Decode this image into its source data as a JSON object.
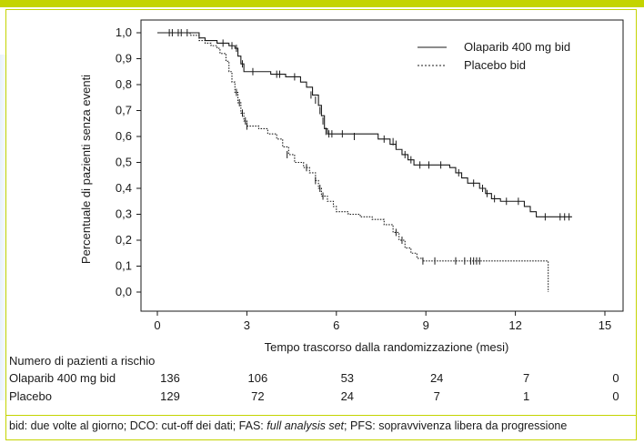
{
  "header_fragment": "",
  "chart_data": {
    "type": "line",
    "title": "",
    "xlabel": "Tempo trascorso dalla randomizzazione (mesi)",
    "ylabel": "Percentuale di pazienti senza eventi",
    "xlim": [
      0,
      15
    ],
    "ylim": [
      0,
      1
    ],
    "x_ticks": [
      "0",
      "3",
      "6",
      "9",
      "12",
      "15"
    ],
    "y_ticks": [
      "0,0",
      "0,1",
      "0,2",
      "0,3",
      "0,4",
      "0,5",
      "0,6",
      "0,7",
      "0,8",
      "0,9",
      "1,0"
    ],
    "legend_position": "top-right",
    "series": [
      {
        "name": "Olaparib 400 mg bid",
        "style": "solid",
        "color": "#1a1a1a",
        "steps": [
          [
            0,
            1.0
          ],
          [
            1.2,
            1.0
          ],
          [
            1.4,
            0.98
          ],
          [
            1.6,
            0.97
          ],
          [
            2.0,
            0.96
          ],
          [
            2.4,
            0.95
          ],
          [
            2.6,
            0.94
          ],
          [
            2.7,
            0.91
          ],
          [
            2.8,
            0.88
          ],
          [
            2.9,
            0.85
          ],
          [
            3.6,
            0.85
          ],
          [
            3.8,
            0.84
          ],
          [
            4.3,
            0.83
          ],
          [
            4.8,
            0.81
          ],
          [
            5.0,
            0.79
          ],
          [
            5.2,
            0.76
          ],
          [
            5.4,
            0.72
          ],
          [
            5.5,
            0.68
          ],
          [
            5.6,
            0.63
          ],
          [
            5.7,
            0.61
          ],
          [
            7.4,
            0.59
          ],
          [
            7.8,
            0.57
          ],
          [
            8.0,
            0.55
          ],
          [
            8.2,
            0.53
          ],
          [
            8.4,
            0.51
          ],
          [
            8.6,
            0.49
          ],
          [
            9.8,
            0.48
          ],
          [
            10.0,
            0.46
          ],
          [
            10.2,
            0.44
          ],
          [
            10.4,
            0.42
          ],
          [
            10.8,
            0.4
          ],
          [
            11.0,
            0.38
          ],
          [
            11.2,
            0.36
          ],
          [
            11.5,
            0.35
          ],
          [
            12.3,
            0.33
          ],
          [
            12.5,
            0.31
          ],
          [
            12.7,
            0.29
          ],
          [
            13.9,
            0.29
          ]
        ],
        "censored": [
          [
            0.4,
            1.0
          ],
          [
            0.7,
            1.0
          ],
          [
            1.0,
            1.0
          ],
          [
            2.2,
            0.96
          ],
          [
            2.5,
            0.95
          ],
          [
            2.65,
            0.94
          ],
          [
            2.85,
            0.88
          ],
          [
            3.2,
            0.85
          ],
          [
            4.0,
            0.84
          ],
          [
            4.1,
            0.84
          ],
          [
            4.6,
            0.83
          ],
          [
            5.15,
            0.76
          ],
          [
            5.3,
            0.74
          ],
          [
            5.45,
            0.7
          ],
          [
            5.55,
            0.66
          ],
          [
            5.65,
            0.62
          ],
          [
            5.75,
            0.61
          ],
          [
            5.85,
            0.61
          ],
          [
            6.2,
            0.61
          ],
          [
            6.6,
            0.6
          ],
          [
            7.6,
            0.59
          ],
          [
            7.9,
            0.58
          ],
          [
            8.0,
            0.57
          ],
          [
            8.3,
            0.53
          ],
          [
            8.5,
            0.51
          ],
          [
            8.8,
            0.49
          ],
          [
            9.1,
            0.49
          ],
          [
            9.5,
            0.49
          ],
          [
            10.1,
            0.46
          ],
          [
            10.6,
            0.42
          ],
          [
            10.9,
            0.4
          ],
          [
            11.05,
            0.38
          ],
          [
            11.3,
            0.36
          ],
          [
            11.7,
            0.35
          ],
          [
            12.1,
            0.35
          ],
          [
            13.0,
            0.29
          ],
          [
            13.5,
            0.29
          ],
          [
            13.65,
            0.29
          ],
          [
            13.8,
            0.29
          ]
        ]
      },
      {
        "name": "Placebo bid",
        "style": "dotted",
        "color": "#1a1a1a",
        "steps": [
          [
            0,
            1.0
          ],
          [
            1.1,
            0.99
          ],
          [
            1.4,
            0.97
          ],
          [
            1.6,
            0.96
          ],
          [
            1.8,
            0.95
          ],
          [
            2.0,
            0.94
          ],
          [
            2.1,
            0.92
          ],
          [
            2.3,
            0.89
          ],
          [
            2.4,
            0.85
          ],
          [
            2.5,
            0.81
          ],
          [
            2.6,
            0.77
          ],
          [
            2.7,
            0.73
          ],
          [
            2.8,
            0.69
          ],
          [
            2.9,
            0.66
          ],
          [
            3.0,
            0.64
          ],
          [
            3.4,
            0.63
          ],
          [
            3.7,
            0.61
          ],
          [
            4.0,
            0.59
          ],
          [
            4.2,
            0.56
          ],
          [
            4.4,
            0.53
          ],
          [
            4.6,
            0.5
          ],
          [
            4.9,
            0.48
          ],
          [
            5.1,
            0.46
          ],
          [
            5.3,
            0.43
          ],
          [
            5.4,
            0.4
          ],
          [
            5.5,
            0.37
          ],
          [
            5.7,
            0.35
          ],
          [
            5.9,
            0.33
          ],
          [
            6.0,
            0.31
          ],
          [
            6.4,
            0.3
          ],
          [
            6.8,
            0.29
          ],
          [
            7.2,
            0.28
          ],
          [
            7.6,
            0.26
          ],
          [
            7.9,
            0.23
          ],
          [
            8.1,
            0.2
          ],
          [
            8.3,
            0.17
          ],
          [
            8.5,
            0.15
          ],
          [
            8.7,
            0.13
          ],
          [
            8.9,
            0.12
          ],
          [
            13.1,
            0.12
          ],
          [
            13.1,
            0.0
          ]
        ],
        "censored": [
          [
            0.5,
            1.0
          ],
          [
            0.8,
            1.0
          ],
          [
            2.65,
            0.77
          ],
          [
            2.75,
            0.73
          ],
          [
            2.85,
            0.69
          ],
          [
            2.95,
            0.66
          ],
          [
            3.0,
            0.64
          ],
          [
            4.35,
            0.53
          ],
          [
            5.0,
            0.48
          ],
          [
            5.3,
            0.43
          ],
          [
            5.45,
            0.4
          ],
          [
            5.55,
            0.37
          ],
          [
            8.0,
            0.23
          ],
          [
            8.2,
            0.2
          ],
          [
            8.9,
            0.12
          ],
          [
            9.3,
            0.12
          ],
          [
            10.0,
            0.12
          ],
          [
            10.3,
            0.12
          ],
          [
            10.5,
            0.12
          ],
          [
            10.6,
            0.12
          ],
          [
            10.7,
            0.12
          ],
          [
            10.8,
            0.12
          ]
        ]
      }
    ]
  },
  "risk_table": {
    "title": "Numero di pazienti a rischio",
    "time_points": [
      0,
      3,
      6,
      9,
      12,
      15
    ],
    "rows": [
      {
        "label": "Olaparib 400 mg bid",
        "values": [
          "136",
          "106",
          "53",
          "24",
          "7",
          "0"
        ]
      },
      {
        "label": "Placebo",
        "values": [
          "129",
          "72",
          "24",
          "7",
          "1",
          "0"
        ]
      }
    ]
  },
  "footnote": {
    "before_fas": "bid: due volte al giorno; DCO: cut-off dei dati; FAS: ",
    "fas_italic": "full analysis set",
    "after_fas": "; PFS: sopravvivenza libera da progressione"
  },
  "colors": {
    "accent_border": "#c4d400",
    "line": "#1a1a1a",
    "background": "#ffffff"
  }
}
